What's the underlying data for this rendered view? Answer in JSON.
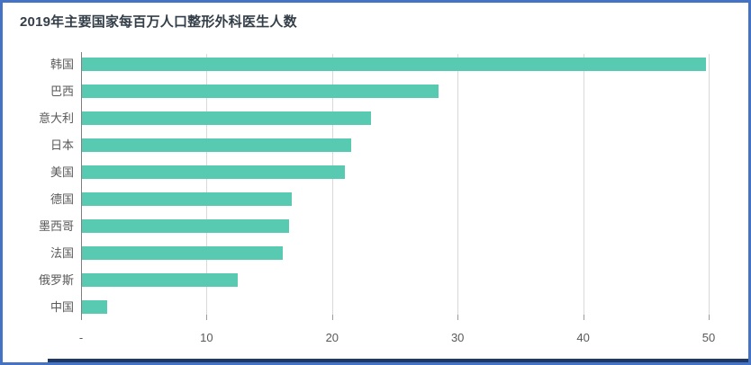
{
  "title": "2019年主要国家每百万人口整形外科医生人数",
  "colors": {
    "bar": "#58cab1",
    "frame_border": "#4472c4",
    "bottom_strip": "#1f3864",
    "gridline": "#d9d9d9",
    "axis_line": "#7f7f7f",
    "label_text": "#595959",
    "title_text": "#333e48"
  },
  "chart_data": {
    "type": "bar",
    "orientation": "horizontal",
    "title": "2019年主要国家每百万人口整形外科医生人数",
    "categories": [
      "韩国",
      "巴西",
      "意大利",
      "日本",
      "美国",
      "德国",
      "墨西哥",
      "法国",
      "俄罗斯",
      "中国"
    ],
    "values": [
      49.8,
      28.5,
      23.1,
      21.5,
      21.0,
      16.8,
      16.6,
      16.1,
      12.5,
      2.1
    ],
    "xlabel": "",
    "ylabel": "",
    "xlim": [
      0,
      50
    ],
    "xticks": [
      0,
      10,
      20,
      30,
      40,
      50
    ],
    "xtick_labels": [
      "-",
      "10",
      "20",
      "30",
      "40",
      "50"
    ],
    "grid": "vertical-gridlines",
    "legend": "none",
    "units": "每百万人口整形外科医生人数"
  }
}
